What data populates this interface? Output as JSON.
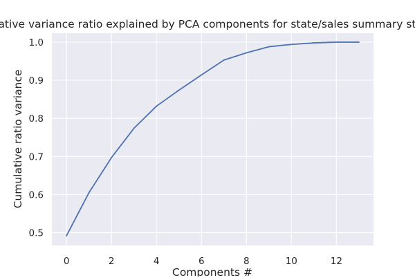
{
  "chart_data": {
    "type": "line",
    "title": "Cumulative variance ratio explained by PCA components for state/sales summary statistics",
    "xlabel": "Components #",
    "ylabel": "Cumulative ratio variance",
    "x": [
      0,
      1,
      2,
      3,
      4,
      5,
      6,
      7,
      8,
      9,
      10,
      11,
      12,
      13
    ],
    "series": [
      {
        "values": [
          0.492,
          0.605,
          0.697,
          0.774,
          0.832,
          0.874,
          0.914,
          0.953,
          0.972,
          0.988,
          0.994,
          0.998,
          1.0,
          1.0
        ],
        "color": "#4c72b0"
      }
    ],
    "xlim": [
      -0.65,
      13.65
    ],
    "ylim": [
      0.4665,
      1.0235
    ],
    "xticks": [
      0,
      2,
      4,
      6,
      8,
      10,
      12
    ],
    "yticks": [
      0.5,
      0.6,
      0.7,
      0.8,
      0.9,
      1.0
    ],
    "ytick_labels": [
      "0.5",
      "0.6",
      "0.7",
      "0.8",
      "0.9",
      "1.0"
    ],
    "grid": true,
    "background": "#eaeaf2",
    "grid_color": "#ffffff"
  }
}
